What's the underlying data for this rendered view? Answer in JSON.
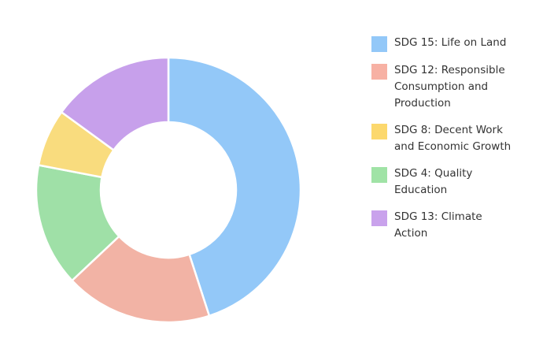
{
  "chart_data": {
    "type": "pie",
    "variant": "donut",
    "categories": [
      "SDG 15: Life on Land",
      "SDG 12: Responsible Consumption and Production",
      "SDG 8: Decent Work and Economic Growth",
      "SDG 4: Quality Education",
      "SDG 13: Climate Action"
    ],
    "values": [
      45,
      18,
      7,
      15,
      15
    ],
    "colors": [
      "#93c8f8",
      "#f2b3a5",
      "#f9dc7e",
      "#9fe0a7",
      "#c7a0eb"
    ],
    "legend_colors": [
      "#93c8f8",
      "#f7b1a4",
      "#fcd86d",
      "#a0e3a6",
      "#c9a2ec"
    ],
    "slice_order_clockwise_from_top": [
      0,
      1,
      3,
      2,
      4
    ],
    "legend_position": "right",
    "title": ""
  }
}
